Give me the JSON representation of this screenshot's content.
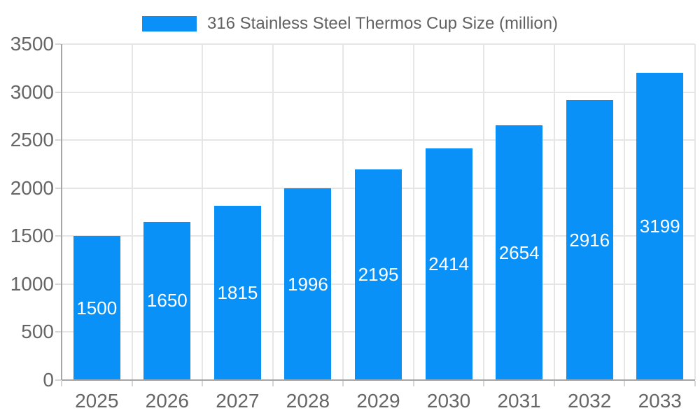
{
  "colors": {
    "background": "#ffffff",
    "bar": "#0a91f8",
    "grid": "#e6e6e6",
    "tick": "#d6d6d6",
    "axis": "#a6a6a6",
    "axis_label": "#666666",
    "legend_label": "#616161",
    "bar_label": "#ffffff"
  },
  "legend": {
    "label": "316 Stainless Steel Thermos Cup Size (million)"
  },
  "chart_data": {
    "type": "bar",
    "title": "316 Stainless Steel Thermos Cup Size (million)",
    "categories": [
      "2025",
      "2026",
      "2027",
      "2028",
      "2029",
      "2030",
      "2031",
      "2032",
      "2033"
    ],
    "values": [
      1500,
      1650,
      1815,
      1996,
      2195,
      2414,
      2654,
      2916,
      3199
    ],
    "xlabel": "",
    "ylabel": "",
    "ylim": [
      0,
      3500
    ],
    "yticks": [
      0,
      500,
      1000,
      1500,
      2000,
      2500,
      3000,
      3500
    ],
    "grid": true,
    "legend_position": "top",
    "data_labels": "inside-center",
    "bar_color": "#0a91f8"
  }
}
